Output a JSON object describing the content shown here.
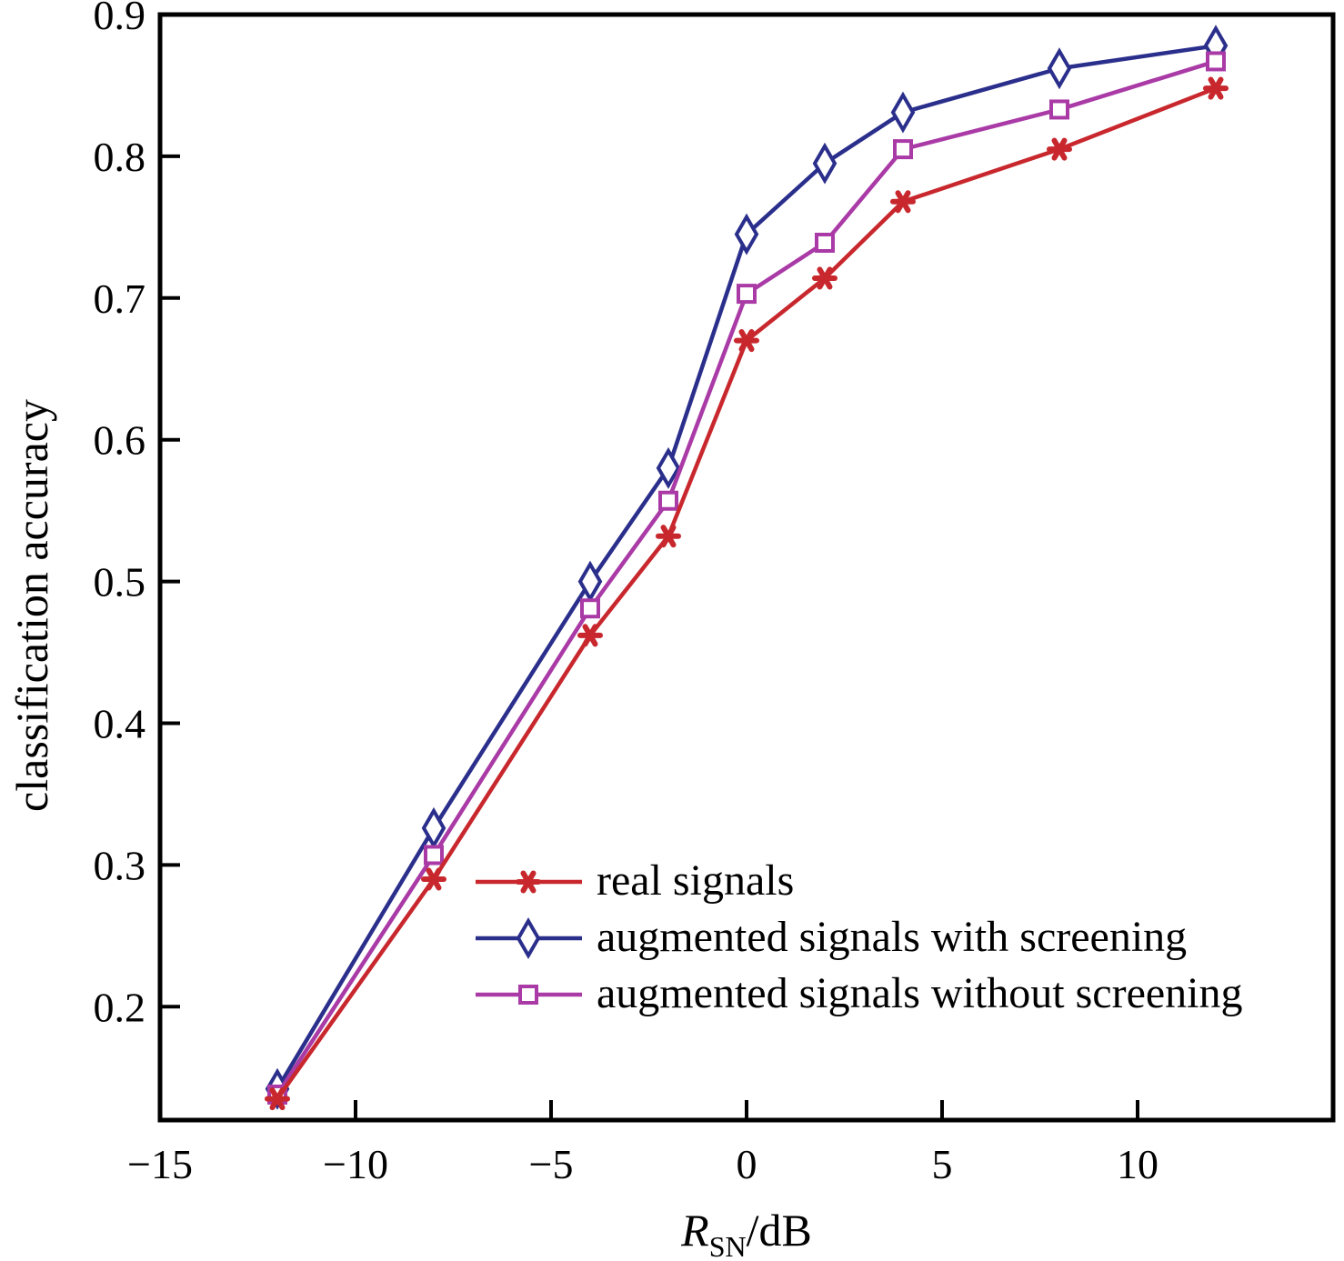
{
  "chart_data": {
    "type": "line",
    "title": "",
    "xlabel": {
      "main": "R",
      "sub": "SN",
      "suffix": "/dB"
    },
    "ylabel": "classification accuracy",
    "xlim": [
      -15,
      15
    ],
    "ylim": [
      0.12,
      0.9
    ],
    "x_ticks": [
      -15,
      -10,
      -5,
      0,
      5,
      10
    ],
    "x_tick_labels": [
      "−15",
      "−10",
      "−5",
      "0",
      "5",
      "10"
    ],
    "y_ticks": [
      0.2,
      0.3,
      0.4,
      0.5,
      0.6,
      0.7,
      0.8,
      0.9
    ],
    "y_tick_labels": [
      "0.2",
      "0.3",
      "0.4",
      "0.5",
      "0.6",
      "0.7",
      "0.8",
      "0.9"
    ],
    "grid": false,
    "legend_position": "lower-right",
    "x": [
      -12,
      -8,
      -4,
      -2,
      0,
      2,
      4,
      8,
      12
    ],
    "series": [
      {
        "name": "real signals",
        "color": "#c8282d",
        "marker": "asterisk",
        "values": [
          0.135,
          0.29,
          0.462,
          0.532,
          0.67,
          0.714,
          0.768,
          0.805,
          0.848
        ]
      },
      {
        "name": "augmented signals with screening",
        "color": "#2b2f8c",
        "marker": "diamond",
        "values": [
          0.142,
          0.326,
          0.5,
          0.58,
          0.745,
          0.795,
          0.831,
          0.862,
          0.878
        ]
      },
      {
        "name": "augmented signals without screening",
        "color": "#a93aa6",
        "marker": "square",
        "values": [
          0.138,
          0.307,
          0.481,
          0.557,
          0.703,
          0.739,
          0.805,
          0.833,
          0.867
        ]
      }
    ]
  }
}
